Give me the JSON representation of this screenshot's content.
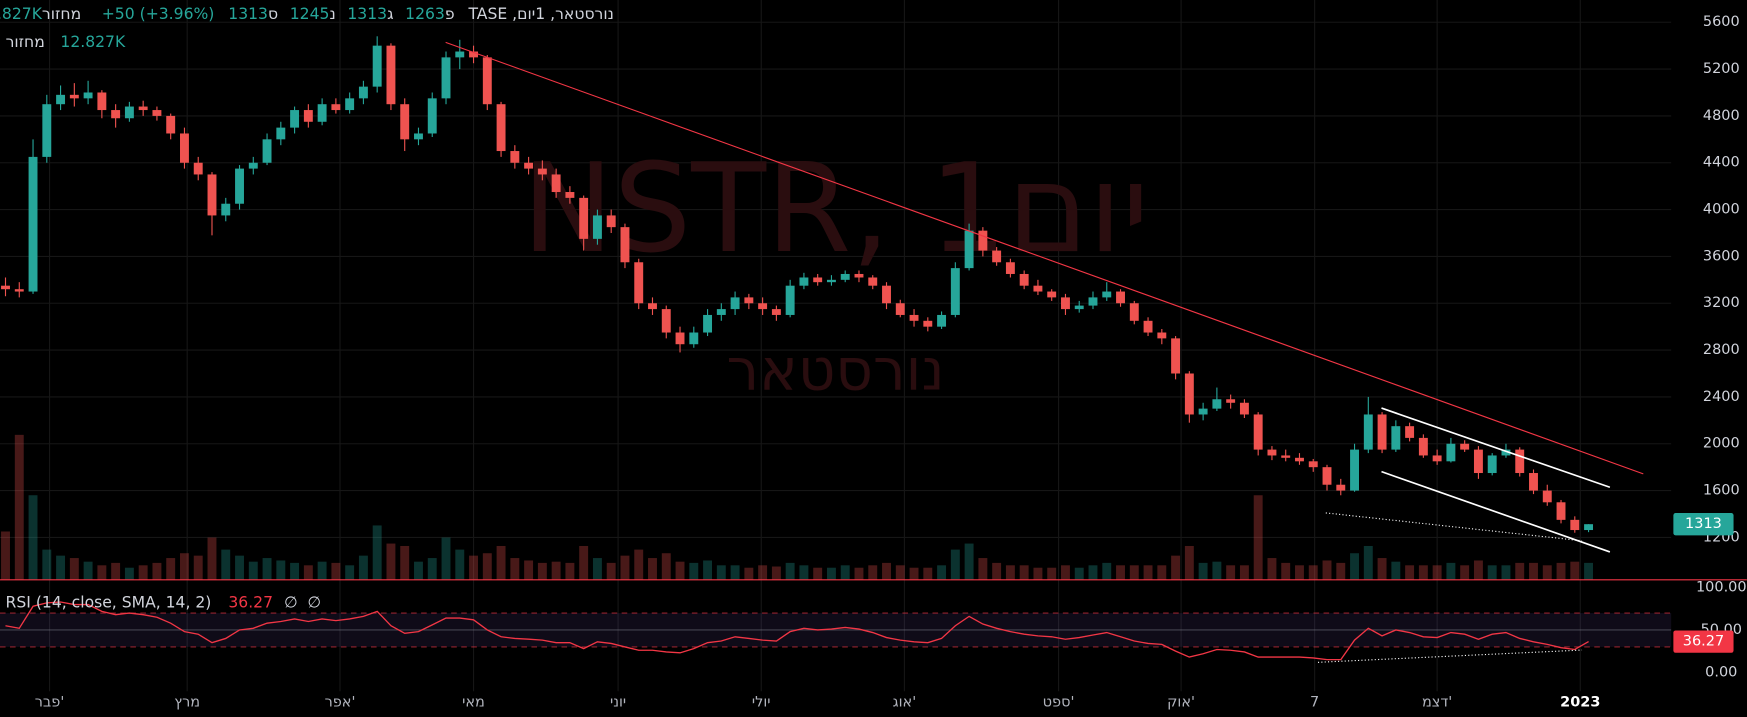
{
  "header": {
    "symbol": "נורסטאר, 1יום, TASE",
    "open_label": "פ",
    "high_label": "ג",
    "low_label": "נ",
    "close_label": "ס",
    "change": "+50 (+3.96%)",
    "volume_label": "מחזור",
    "volume": "12.827K"
  },
  "watermark": {
    "symbol": "NSTR, 1יום",
    "name": "נורסטאר"
  },
  "chart_data": [
    {
      "type": "candlestick",
      "up_color": "#26a69a",
      "down_color": "#ef5350",
      "grid": true,
      "ylim": [
        838,
        5790
      ],
      "yticks": [
        1200,
        1600,
        2000,
        2400,
        2800,
        3200,
        3600,
        4000,
        4400,
        4800,
        5200,
        5600
      ],
      "xlim": [
        -0.4,
        121
      ],
      "xticks": [
        {
          "value": 3.2,
          "label": "פבר'"
        },
        {
          "value": 13.2,
          "label": "מרץ"
        },
        {
          "value": 24.3,
          "label": "אפר'"
        },
        {
          "value": 34,
          "label": "מאי"
        },
        {
          "value": 44.5,
          "label": "יוני"
        },
        {
          "value": 54.9,
          "label": "יולי"
        },
        {
          "value": 65.3,
          "label": "אוג'"
        },
        {
          "value": 76.5,
          "label": "ספט'"
        },
        {
          "value": 85.4,
          "label": "אוק'"
        },
        {
          "value": 95.1,
          "label": "7"
        },
        {
          "value": 104,
          "label": "דצמ'"
        },
        {
          "value": 114.4,
          "label": "2023"
        }
      ],
      "candles": [
        [
          3350,
          3420,
          3260,
          3320
        ],
        [
          3320,
          3380,
          3250,
          3300
        ],
        [
          3300,
          4600,
          3280,
          4450
        ],
        [
          4450,
          4980,
          4400,
          4900
        ],
        [
          4900,
          5060,
          4850,
          4980
        ],
        [
          4980,
          5080,
          4880,
          4950
        ],
        [
          4950,
          5100,
          4900,
          5000
        ],
        [
          5000,
          5020,
          4780,
          4850
        ],
        [
          4850,
          4900,
          4700,
          4780
        ],
        [
          4780,
          4920,
          4750,
          4880
        ],
        [
          4880,
          4930,
          4800,
          4850
        ],
        [
          4850,
          4880,
          4760,
          4800
        ],
        [
          4800,
          4820,
          4600,
          4650
        ],
        [
          4650,
          4700,
          4350,
          4400
        ],
        [
          4400,
          4450,
          4250,
          4300
        ],
        [
          4300,
          4320,
          3780,
          3950
        ],
        [
          3950,
          4100,
          3900,
          4050
        ],
        [
          4050,
          4380,
          4000,
          4350
        ],
        [
          4350,
          4450,
          4300,
          4400
        ],
        [
          4400,
          4650,
          4380,
          4600
        ],
        [
          4600,
          4750,
          4550,
          4700
        ],
        [
          4700,
          4880,
          4650,
          4850
        ],
        [
          4850,
          4900,
          4700,
          4750
        ],
        [
          4750,
          4950,
          4720,
          4900
        ],
        [
          4900,
          4950,
          4820,
          4850
        ],
        [
          4850,
          5000,
          4820,
          4950
        ],
        [
          4950,
          5100,
          4900,
          5050
        ],
        [
          5050,
          5480,
          5000,
          5400
        ],
        [
          5400,
          5420,
          4850,
          4900
        ],
        [
          4900,
          4950,
          4500,
          4600
        ],
        [
          4600,
          4700,
          4550,
          4650
        ],
        [
          4650,
          5000,
          4620,
          4950
        ],
        [
          4950,
          5350,
          4900,
          5300
        ],
        [
          5300,
          5450,
          5200,
          5350
        ],
        [
          5350,
          5400,
          5250,
          5300
        ],
        [
          5300,
          5320,
          4850,
          4900
        ],
        [
          4900,
          4920,
          4450,
          4500
        ],
        [
          4500,
          4550,
          4350,
          4400
        ],
        [
          4400,
          4450,
          4300,
          4350
        ],
        [
          4350,
          4420,
          4250,
          4300
        ],
        [
          4300,
          4350,
          4100,
          4150
        ],
        [
          4150,
          4200,
          4050,
          4100
        ],
        [
          4100,
          4120,
          3650,
          3750
        ],
        [
          3750,
          4000,
          3700,
          3950
        ],
        [
          3950,
          4000,
          3800,
          3850
        ],
        [
          3850,
          3880,
          3500,
          3550
        ],
        [
          3550,
          3580,
          3150,
          3200
        ],
        [
          3200,
          3250,
          3100,
          3150
        ],
        [
          3150,
          3180,
          2900,
          2950
        ],
        [
          2950,
          3000,
          2780,
          2850
        ],
        [
          2850,
          3000,
          2820,
          2950
        ],
        [
          2950,
          3150,
          2920,
          3100
        ],
        [
          3100,
          3200,
          3050,
          3150
        ],
        [
          3150,
          3300,
          3100,
          3250
        ],
        [
          3250,
          3280,
          3150,
          3200
        ],
        [
          3200,
          3250,
          3100,
          3150
        ],
        [
          3150,
          3180,
          3050,
          3100
        ],
        [
          3100,
          3400,
          3080,
          3350
        ],
        [
          3350,
          3460,
          3320,
          3420
        ],
        [
          3420,
          3450,
          3350,
          3380
        ],
        [
          3380,
          3440,
          3350,
          3400
        ],
        [
          3400,
          3480,
          3380,
          3450
        ],
        [
          3450,
          3480,
          3380,
          3420
        ],
        [
          3420,
          3440,
          3320,
          3350
        ],
        [
          3350,
          3380,
          3150,
          3200
        ],
        [
          3200,
          3230,
          3080,
          3100
        ],
        [
          3100,
          3150,
          3000,
          3050
        ],
        [
          3050,
          3080,
          2960,
          3000
        ],
        [
          3000,
          3130,
          2980,
          3100
        ],
        [
          3100,
          3550,
          3080,
          3500
        ],
        [
          3500,
          3880,
          3480,
          3820
        ],
        [
          3820,
          3850,
          3600,
          3650
        ],
        [
          3650,
          3680,
          3520,
          3550
        ],
        [
          3550,
          3580,
          3420,
          3450
        ],
        [
          3450,
          3480,
          3320,
          3350
        ],
        [
          3350,
          3400,
          3270,
          3300
        ],
        [
          3300,
          3320,
          3220,
          3250
        ],
        [
          3250,
          3280,
          3100,
          3150
        ],
        [
          3150,
          3220,
          3120,
          3180
        ],
        [
          3180,
          3300,
          3150,
          3250
        ],
        [
          3250,
          3380,
          3220,
          3300
        ],
        [
          3300,
          3320,
          3170,
          3200
        ],
        [
          3200,
          3220,
          3020,
          3050
        ],
        [
          3050,
          3080,
          2920,
          2950
        ],
        [
          2950,
          2980,
          2850,
          2900
        ],
        [
          2900,
          2920,
          2550,
          2600
        ],
        [
          2600,
          2620,
          2180,
          2250
        ],
        [
          2250,
          2350,
          2200,
          2300
        ],
        [
          2300,
          2480,
          2280,
          2380
        ],
        [
          2380,
          2420,
          2300,
          2350
        ],
        [
          2350,
          2380,
          2220,
          2250
        ],
        [
          2250,
          2270,
          1900,
          1950
        ],
        [
          1950,
          1980,
          1860,
          1900
        ],
        [
          1900,
          1950,
          1850,
          1880
        ],
        [
          1880,
          1920,
          1820,
          1850
        ],
        [
          1850,
          1870,
          1760,
          1800
        ],
        [
          1800,
          1820,
          1600,
          1650
        ],
        [
          1650,
          1700,
          1560,
          1600
        ],
        [
          1600,
          2000,
          1590,
          1950
        ],
        [
          1950,
          2400,
          1920,
          2250
        ],
        [
          2250,
          2270,
          1920,
          1950
        ],
        [
          1950,
          2200,
          1930,
          2150
        ],
        [
          2150,
          2180,
          2020,
          2050
        ],
        [
          2050,
          2080,
          1880,
          1900
        ],
        [
          1900,
          1950,
          1820,
          1850
        ],
        [
          1850,
          2050,
          1840,
          2000
        ],
        [
          2000,
          2030,
          1930,
          1950
        ],
        [
          1950,
          1980,
          1700,
          1750
        ],
        [
          1750,
          1920,
          1730,
          1900
        ],
        [
          1900,
          2000,
          1880,
          1950
        ],
        [
          1950,
          1970,
          1720,
          1750
        ],
        [
          1750,
          1780,
          1570,
          1600
        ],
        [
          1600,
          1650,
          1470,
          1500
        ],
        [
          1500,
          1520,
          1320,
          1350
        ],
        [
          1350,
          1380,
          1240,
          1263
        ],
        [
          1263,
          1313,
          1245,
          1313
        ]
      ],
      "volumes": [
        40,
        120,
        70,
        25,
        20,
        18,
        15,
        12,
        14,
        10,
        12,
        14,
        18,
        22,
        20,
        35,
        25,
        20,
        15,
        18,
        16,
        14,
        12,
        15,
        14,
        12,
        20,
        45,
        30,
        28,
        15,
        18,
        35,
        25,
        20,
        22,
        28,
        18,
        16,
        14,
        15,
        14,
        28,
        18,
        14,
        20,
        25,
        18,
        22,
        15,
        14,
        16,
        12,
        12,
        10,
        12,
        11,
        14,
        12,
        10,
        10,
        12,
        10,
        12,
        14,
        12,
        10,
        10,
        12,
        25,
        30,
        18,
        14,
        12,
        12,
        10,
        10,
        12,
        10,
        12,
        14,
        12,
        12,
        12,
        12,
        20,
        28,
        14,
        15,
        12,
        12,
        70,
        18,
        14,
        12,
        12,
        16,
        14,
        22,
        28,
        18,
        15,
        12,
        12,
        12,
        14,
        12,
        16,
        12,
        12,
        14,
        14,
        12,
        14,
        15,
        14
      ]
    },
    {
      "type": "line",
      "title": "RSI (14, close, SMA, 14, 2)",
      "extra_values": [
        "∅",
        "∅"
      ],
      "color": "#f23645",
      "ylim": [
        -22.4,
        109.2
      ],
      "yticks": [
        {
          "value": 0,
          "label": "0.00"
        },
        {
          "value": 50,
          "label": "50.00"
        },
        {
          "value": 100,
          "label": "100.00"
        }
      ],
      "levels": [
        70,
        30
      ],
      "values": [
        55,
        52,
        78,
        82,
        83,
        80,
        80,
        72,
        68,
        70,
        68,
        65,
        58,
        48,
        45,
        35,
        40,
        50,
        52,
        58,
        60,
        63,
        60,
        63,
        61,
        63,
        66,
        72,
        55,
        46,
        48,
        56,
        64,
        64,
        62,
        50,
        42,
        40,
        39,
        38,
        35,
        35,
        28,
        36,
        34,
        30,
        26,
        26,
        24,
        23,
        28,
        35,
        37,
        42,
        40,
        38,
        37,
        48,
        52,
        50,
        51,
        53,
        51,
        47,
        41,
        38,
        36,
        35,
        40,
        55,
        66,
        57,
        52,
        48,
        45,
        43,
        42,
        39,
        41,
        44,
        47,
        42,
        37,
        34,
        33,
        25,
        18,
        22,
        27,
        26,
        24,
        18,
        18,
        18,
        18,
        17,
        15,
        15,
        38,
        52,
        43,
        50,
        47,
        42,
        41,
        47,
        45,
        39,
        45,
        47,
        40,
        36,
        33,
        29,
        27,
        36.27
      ]
    }
  ]
}
